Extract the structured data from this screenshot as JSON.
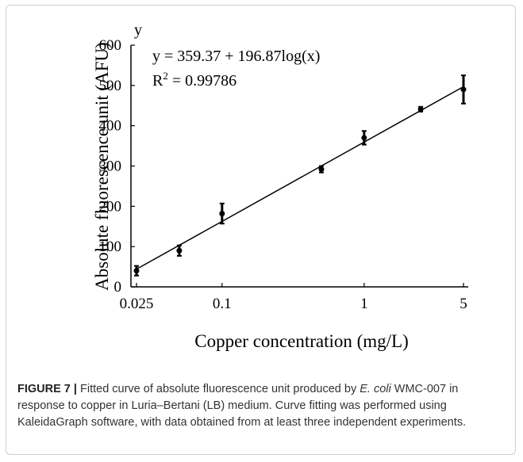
{
  "chart_data": {
    "type": "scatter",
    "x_label": "Copper concentration (mg/L)",
    "y_label": "Absolute fluorescence unit (AFU)",
    "y_axis_name": "y",
    "equation": "y = 359.37 + 196.87log(x)",
    "r_squared": [
      "R",
      "2",
      "= 0.99786"
    ],
    "x": [
      0.025,
      0.05,
      0.1,
      0.5,
      1,
      2.5,
      5
    ],
    "values": [
      40,
      90,
      182,
      292,
      370,
      441,
      490
    ],
    "errors": [
      12,
      13,
      25,
      8,
      17,
      6,
      35
    ],
    "color": "#000000",
    "fit_line": {
      "x": [
        0.025,
        5
      ],
      "values": [
        44,
        497
      ]
    },
    "log_x": true,
    "xlim": [
      0.025,
      5
    ],
    "xticks": [
      0.025,
      0.1,
      1,
      5
    ],
    "ylim": [
      0,
      600
    ],
    "yticks": [
      0,
      100,
      200,
      300,
      400,
      500,
      600
    ]
  },
  "caption": {
    "label": "FIGURE 7 |",
    "parts": [
      "Fitted curve of absolute fluorescence unit produced by",
      "E. coli",
      "WMC-007 in response to copper in Luria–Bertani (LB) medium. Curve fitting was performed using KaleidaGraph software, with data obtained from at least three independent experiments."
    ]
  }
}
